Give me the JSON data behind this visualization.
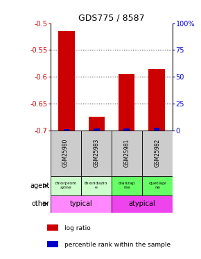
{
  "title": "GDS775 / 8587",
  "samples": [
    "GSM25980",
    "GSM25983",
    "GSM25981",
    "GSM25982"
  ],
  "log_ratio": [
    -0.515,
    -0.675,
    -0.595,
    -0.585
  ],
  "percentile": [
    1.0,
    1.5,
    2.0,
    2.5
  ],
  "ylim_left": [
    -0.7,
    -0.5
  ],
  "ylim_right": [
    0,
    100
  ],
  "yticks_left": [
    -0.7,
    -0.65,
    -0.6,
    -0.55,
    -0.5
  ],
  "yticks_right": [
    0,
    25,
    50,
    75,
    100
  ],
  "ytick_labels_right": [
    "0",
    "25",
    "50",
    "75",
    "100%"
  ],
  "red_color": "#cc0000",
  "blue_color": "#0000cc",
  "agent_labels": [
    "chlorprom\nazine",
    "thioridazin\ne",
    "olanzap\nine",
    "quetiapi\nne"
  ],
  "agent_colors_left": "#ccffcc",
  "agent_colors_right": "#66ff66",
  "other_color_left": "#ff88ff",
  "other_color_right": "#ee44ee",
  "legend_red": "log ratio",
  "legend_blue": "percentile rank within the sample",
  "background_color": "#ffffff",
  "label_color_left": "#cc0000",
  "label_color_right": "#0000cc"
}
